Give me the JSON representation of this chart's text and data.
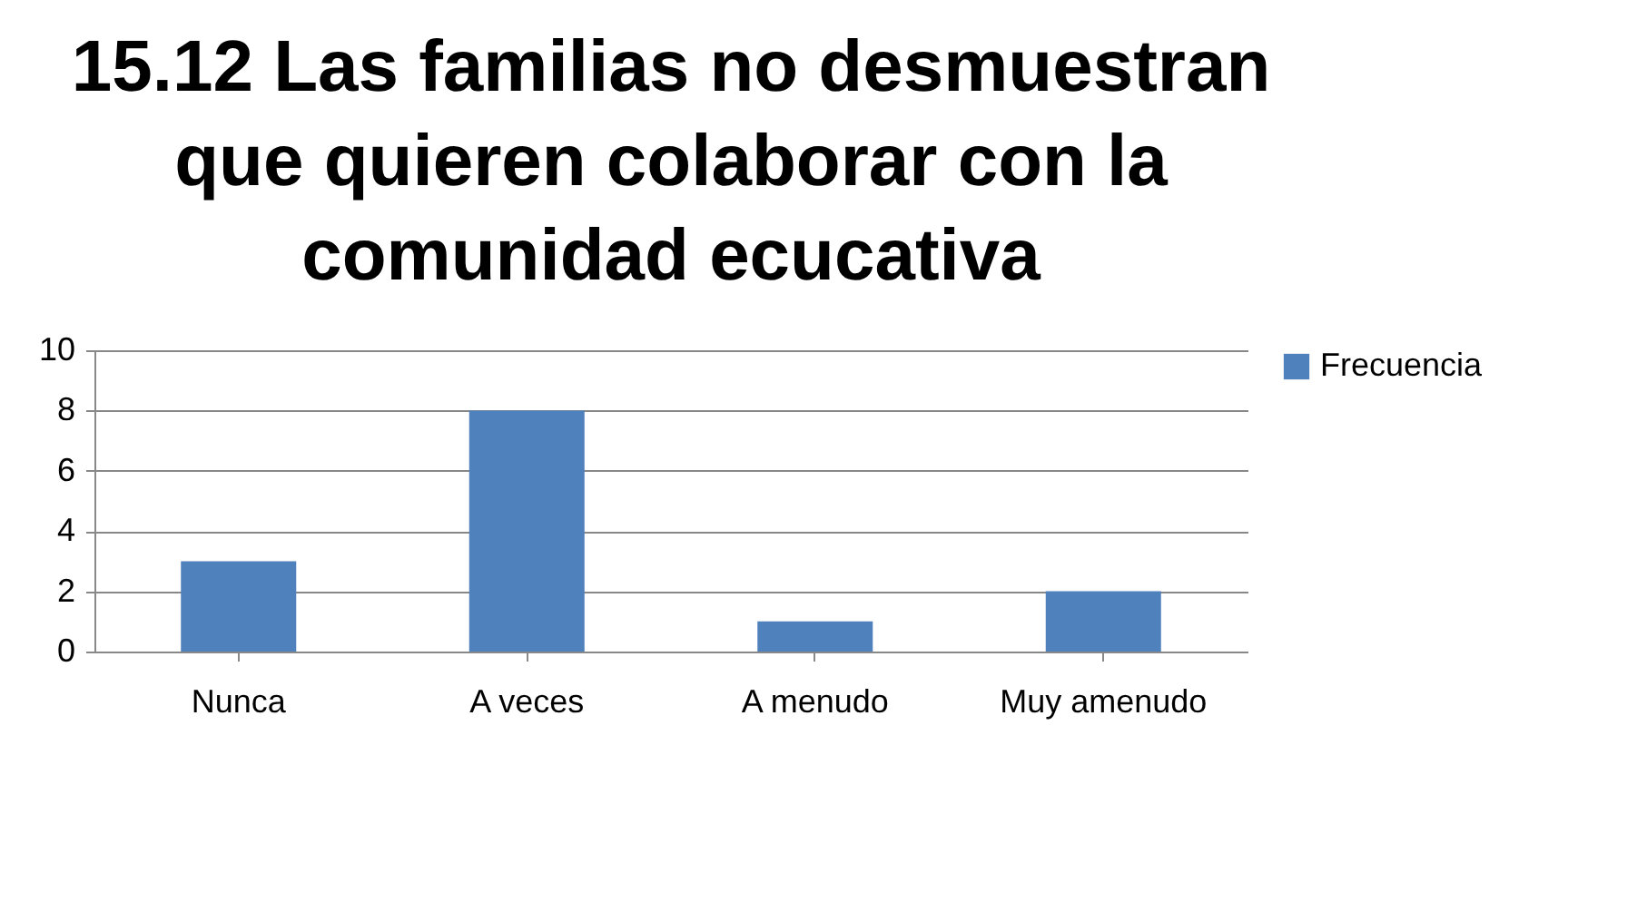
{
  "chart_data": {
    "type": "bar",
    "title": "15.12 Las familias no desmuestran que quieren colaborar con la comunidad ecucativa",
    "categories": [
      "Nunca",
      "A veces",
      "A menudo",
      "Muy amenudo"
    ],
    "series": [
      {
        "name": "Frecuencia",
        "color": "#4f81bd",
        "values": [
          3,
          8,
          1,
          2
        ]
      }
    ],
    "ylim": [
      0,
      10
    ],
    "yticks": [
      0,
      2,
      4,
      6,
      8,
      10
    ],
    "grid": "y",
    "legend": "right"
  }
}
